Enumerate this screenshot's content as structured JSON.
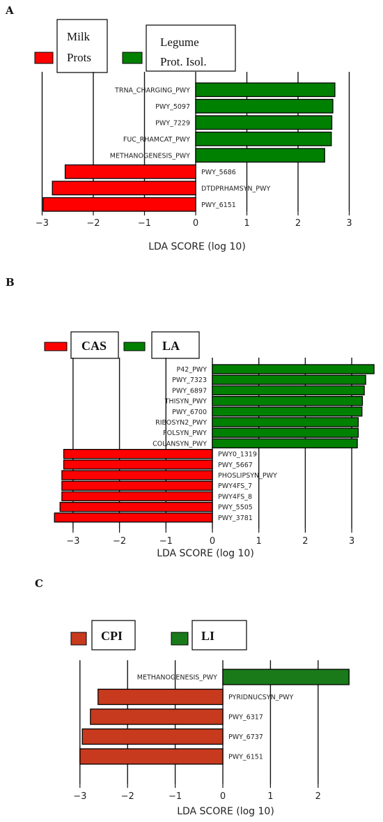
{
  "chart_data": [
    {
      "panel": "A",
      "type": "bar",
      "orientation": "horizontal",
      "legend": [
        {
          "label_lines": [
            "Milk",
            "Prots"
          ],
          "color": "#ff0000"
        },
        {
          "label_lines": [
            "Legume",
            "Prot. Isol."
          ],
          "color": "#008000"
        }
      ],
      "xlabel": "LDA SCORE (log 10)",
      "xticks": [
        -3,
        -2,
        -1,
        0,
        1,
        2,
        3
      ],
      "xlim": [
        -3.05,
        3.1
      ],
      "bars": [
        {
          "label": "TRNA_CHARGING_PWY",
          "value": 2.72,
          "group": 1
        },
        {
          "label": "PWY_5097",
          "value": 2.68,
          "group": 1
        },
        {
          "label": "PWY_7229",
          "value": 2.66,
          "group": 1
        },
        {
          "label": "FUC_RHAMCAT_PWY",
          "value": 2.65,
          "group": 1
        },
        {
          "label": "METHANOGENESIS_PWY",
          "value": 2.52,
          "group": 1
        },
        {
          "label": "PWY_5686",
          "value": -2.55,
          "group": 0
        },
        {
          "label": "DTDPRHAMSYN_PWY",
          "value": -2.8,
          "group": 0
        },
        {
          "label": "PWY_6151",
          "value": -2.98,
          "group": 0
        }
      ]
    },
    {
      "panel": "B",
      "type": "bar",
      "orientation": "horizontal",
      "legend": [
        {
          "label_lines": [
            "CAS"
          ],
          "color": "#ff0000"
        },
        {
          "label_lines": [
            "LA"
          ],
          "color": "#008000"
        }
      ],
      "xlabel": "LDA SCORE (log 10)",
      "xticks": [
        -3,
        -2,
        -1,
        0,
        1,
        2,
        3
      ],
      "xlim": [
        -3.5,
        3.5
      ],
      "bars": [
        {
          "label": "P42_PWY",
          "value": 3.48,
          "group": 1
        },
        {
          "label": "PWY_7323",
          "value": 3.3,
          "group": 1
        },
        {
          "label": "PWY_6897",
          "value": 3.27,
          "group": 1
        },
        {
          "label": "THISYN_PWY",
          "value": 3.23,
          "group": 1
        },
        {
          "label": "PWY_6700",
          "value": 3.22,
          "group": 1
        },
        {
          "label": "RIBOSYN2_PWY",
          "value": 3.14,
          "group": 1
        },
        {
          "label": "FOLSYN_PWY",
          "value": 3.14,
          "group": 1
        },
        {
          "label": "COLANSYN_PWY",
          "value": 3.12,
          "group": 1
        },
        {
          "label": "PWY0_1319",
          "value": -3.2,
          "group": 0
        },
        {
          "label": "PWY_5667",
          "value": -3.2,
          "group": 0
        },
        {
          "label": "PHOSLIPSYN_PWY",
          "value": -3.24,
          "group": 0
        },
        {
          "label": "PWY4FS_7",
          "value": -3.24,
          "group": 0
        },
        {
          "label": "PWY4FS_8",
          "value": -3.24,
          "group": 0
        },
        {
          "label": "PWY_5505",
          "value": -3.28,
          "group": 0
        },
        {
          "label": "PWY_3781",
          "value": -3.4,
          "group": 0
        }
      ]
    },
    {
      "panel": "C",
      "type": "bar",
      "orientation": "horizontal",
      "legend": [
        {
          "label_lines": [
            "CPI"
          ],
          "color": "#c83a1e"
        },
        {
          "label_lines": [
            "LI"
          ],
          "color": "#1a7a1a"
        }
      ],
      "xlabel": "LDA SCORE (log 10)",
      "xticks": [
        -3,
        -2,
        -1,
        0,
        1,
        2
      ],
      "xlim": [
        -3.0,
        2.7
      ],
      "bars": [
        {
          "label": "METHANOGENESIS_PWY",
          "value": 2.65,
          "group": 1
        },
        {
          "label": "PYRIDNUCSYN_PWY",
          "value": -2.62,
          "group": 0
        },
        {
          "label": "PWY_6317",
          "value": -2.78,
          "group": 0
        },
        {
          "label": "PWY_6737",
          "value": -2.95,
          "group": 0
        },
        {
          "label": "PWY_6151",
          "value": -3.0,
          "group": 0
        }
      ]
    }
  ]
}
